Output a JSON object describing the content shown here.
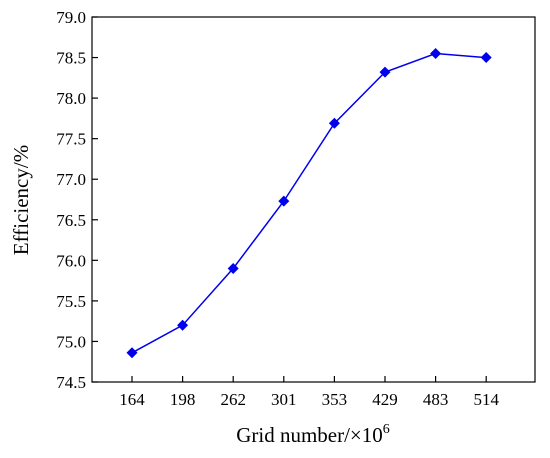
{
  "chart_data": {
    "type": "line",
    "title": "",
    "xlabel": "Grid number/×10",
    "xlabel_superscript": "6",
    "ylabel": "Efficiency/%",
    "categories": [
      "164",
      "198",
      "262",
      "301",
      "353",
      "429",
      "483",
      "514"
    ],
    "series": [
      {
        "values": [
          74.86,
          75.2,
          75.9,
          76.73,
          77.69,
          78.32,
          78.55,
          78.5
        ],
        "color": "#0000ee",
        "marker": "diamond"
      }
    ],
    "ylim": [
      74.5,
      79.0
    ],
    "yticks": [
      "74.5",
      "75.0",
      "75.5",
      "76.0",
      "76.5",
      "77.0",
      "77.5",
      "78.0",
      "78.5",
      "79.0"
    ],
    "grid": false,
    "legend": "none"
  }
}
